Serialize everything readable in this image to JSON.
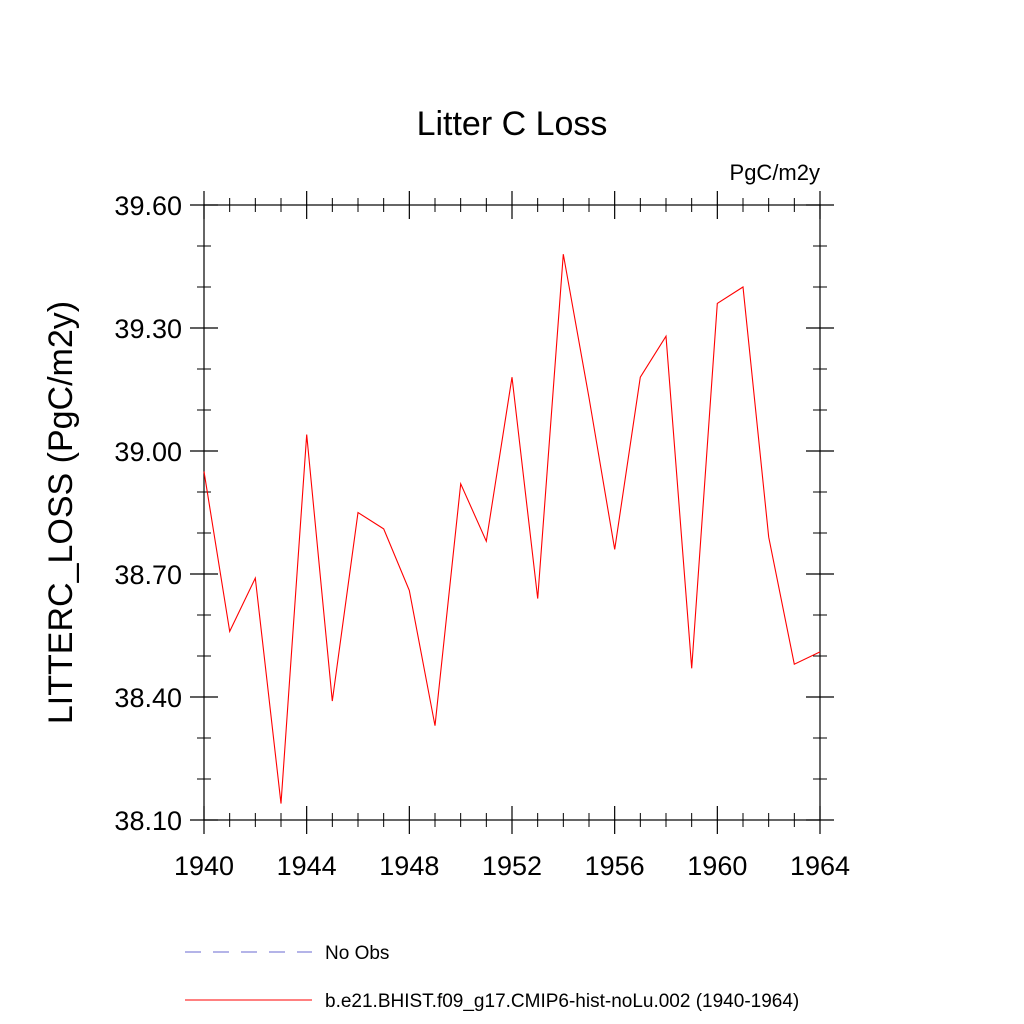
{
  "chart_data": {
    "type": "line",
    "title": "Litter C Loss",
    "units_label": "PgC/m2y",
    "xlabel": "",
    "ylabel": "LITTERC_LOSS  (PgC/m2y)",
    "xlim": [
      1940,
      1964
    ],
    "ylim": [
      38.1,
      39.6
    ],
    "x_ticks": [
      1940,
      1944,
      1948,
      1952,
      1956,
      1960,
      1964
    ],
    "x_tick_labels": [
      "1940",
      "1944",
      "1948",
      "1952",
      "1956",
      "1960",
      "1964"
    ],
    "y_ticks": [
      38.1,
      38.4,
      38.7,
      39.0,
      39.3,
      39.6
    ],
    "y_tick_labels": [
      "38.10",
      "38.40",
      "38.70",
      "39.00",
      "39.30",
      "39.60"
    ],
    "grid": false,
    "legend_position": "bottom",
    "series": [
      {
        "name": "No Obs",
        "color": "#6a6ad0",
        "dash": "dashed",
        "x": [],
        "values": []
      },
      {
        "name": "b.e21.BHIST.f09_g17.CMIP6-hist-noLu.002 (1940-1964)",
        "color": "#ff0000",
        "dash": "solid",
        "x": [
          1940,
          1941,
          1942,
          1943,
          1944,
          1945,
          1946,
          1947,
          1948,
          1949,
          1950,
          1951,
          1952,
          1953,
          1954,
          1955,
          1956,
          1957,
          1958,
          1959,
          1960,
          1961,
          1962,
          1963,
          1964
        ],
        "values": [
          38.95,
          38.56,
          38.69,
          38.14,
          39.04,
          38.39,
          38.85,
          38.81,
          38.66,
          38.33,
          38.92,
          38.78,
          39.18,
          38.64,
          39.48,
          39.13,
          38.76,
          39.18,
          39.28,
          38.47,
          39.36,
          39.4,
          38.79,
          38.48,
          38.51
        ]
      }
    ]
  }
}
